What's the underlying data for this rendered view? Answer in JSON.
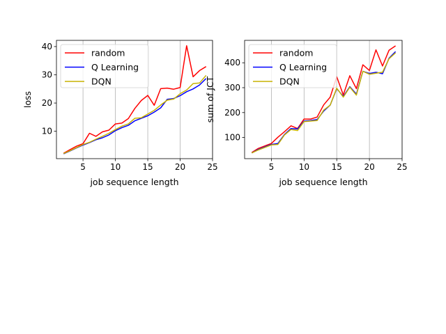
{
  "chart_data": [
    {
      "type": "line",
      "xlabel": "job sequence length",
      "ylabel": "loss",
      "xlim": [
        0.9,
        25
      ],
      "ylim": [
        0.3,
        42.2
      ],
      "x_ticks": [
        5,
        10,
        15,
        20,
        25
      ],
      "y_ticks": [
        10,
        20,
        30,
        40
      ],
      "grid": "x",
      "legend_position": "top-left",
      "x": [
        2,
        3,
        4,
        5,
        6,
        7,
        8,
        9,
        10,
        11,
        12,
        13,
        14,
        15,
        16,
        17,
        18,
        19,
        20,
        21,
        22,
        23,
        24
      ],
      "series": [
        {
          "name": "random",
          "color": "#ff0000",
          "values": [
            2.2,
            3.5,
            4.7,
            5.6,
            9.3,
            8.2,
            9.8,
            10.4,
            12.6,
            12.9,
            14.5,
            18.1,
            20.9,
            22.7,
            19.2,
            25.1,
            25.3,
            24.9,
            25.5,
            40.3,
            29.3,
            31.5,
            32.9
          ]
        },
        {
          "name": "Q Learning",
          "color": "#0000ff",
          "values": [
            2.0,
            3.0,
            4.1,
            5.1,
            6.0,
            7.0,
            7.7,
            8.7,
            10.2,
            11.3,
            12.1,
            13.7,
            14.6,
            15.5,
            16.8,
            18.3,
            21.3,
            21.6,
            22.6,
            24.0,
            25.0,
            26.4,
            28.7
          ]
        },
        {
          "name": "DQN",
          "color": "#c7b200",
          "values": [
            2.1,
            3.1,
            4.2,
            5.3,
            6.1,
            7.2,
            8.2,
            9.3,
            10.6,
            11.8,
            12.6,
            14.6,
            14.8,
            16.1,
            17.4,
            19.3,
            21.0,
            21.4,
            23.3,
            24.6,
            26.9,
            27.1,
            29.8
          ]
        }
      ]
    },
    {
      "type": "line",
      "xlabel": "job sequence length",
      "ylabel": "sum of JCT",
      "xlim": [
        0.9,
        25
      ],
      "ylim": [
        15,
        490
      ],
      "x_ticks": [
        5,
        10,
        15,
        20,
        25
      ],
      "y_ticks": [
        100,
        200,
        300,
        400
      ],
      "grid": "x",
      "legend_position": "top-left",
      "x": [
        2,
        3,
        4,
        5,
        6,
        7,
        8,
        9,
        10,
        11,
        12,
        13,
        14,
        15,
        16,
        17,
        18,
        19,
        20,
        21,
        22,
        23,
        24
      ],
      "series": [
        {
          "name": "random",
          "color": "#ff0000",
          "values": [
            40,
            56,
            66,
            76,
            101,
            123,
            147,
            136,
            174,
            174,
            182,
            231,
            262,
            344,
            271,
            348,
            296,
            392,
            369,
            452,
            387,
            450,
            468
          ]
        },
        {
          "name": "Q Learning",
          "color": "#0000ff",
          "values": [
            38,
            52,
            62,
            72,
            76,
            112,
            136,
            134,
            166,
            168,
            172,
            206,
            230,
            296,
            265,
            304,
            274,
            366,
            357,
            362,
            356,
            418,
            445
          ]
        },
        {
          "name": "DQN",
          "color": "#c7b200",
          "values": [
            38,
            50,
            60,
            70,
            72,
            110,
            132,
            128,
            164,
            166,
            168,
            210,
            230,
            298,
            262,
            302,
            270,
            366,
            354,
            358,
            362,
            416,
            440
          ]
        }
      ]
    }
  ]
}
